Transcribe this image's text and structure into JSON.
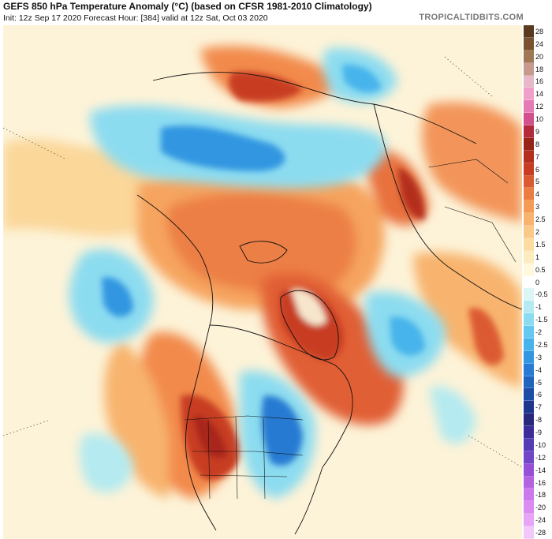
{
  "header": {
    "title": "GEFS 850 hPa Temperature Anomaly (°C) (based on CFSR 1981-2010 Climatology)",
    "subtitle": "Init: 12z Sep 17 2020   Forecast Hour: [384]   valid at 12z Sat, Oct 03 2020",
    "brand": "TROPICALTIDBITS.COM"
  },
  "map": {
    "projection": "north-polar-stereographic",
    "field": "850 hPa temperature anomaly",
    "units": "°C"
  },
  "colorbar": {
    "labels": [
      "28",
      "24",
      "20",
      "18",
      "16",
      "14",
      "12",
      "10",
      "9",
      "8",
      "7",
      "6",
      "5",
      "4",
      "3",
      "2.5",
      "2",
      "1.5",
      "1",
      "0.5",
      "0",
      "-0.5",
      "-1",
      "-1.5",
      "-2",
      "-2.5",
      "-3",
      "-4",
      "-5",
      "-6",
      "-7",
      "-8",
      "-9",
      "-10",
      "-12",
      "-14",
      "-16",
      "-18",
      "-20",
      "-24",
      "-28"
    ],
    "colors": [
      "#5a3a1e",
      "#7a5230",
      "#a07856",
      "#c79a8e",
      "#e6b8c8",
      "#f0a0c8",
      "#e67ab4",
      "#d2508c",
      "#b4283c",
      "#962318",
      "#b42d1e",
      "#c83c23",
      "#dc5a32",
      "#eb7d41",
      "#f59b55",
      "#f8b46e",
      "#fac887",
      "#fcdca0",
      "#fdecbe",
      "#fff8dc",
      "#ffffff",
      "#dcf5f5",
      "#b4eaf0",
      "#8cdcf0",
      "#64c8f0",
      "#46b4eb",
      "#3296e1",
      "#287ad2",
      "#2064be",
      "#1e4ba5",
      "#1e378c",
      "#28287d",
      "#3c2d9b",
      "#553cb4",
      "#7346c8",
      "#9650d7",
      "#b464e1",
      "#cd78eb",
      "#dc8cf0",
      "#e6a5f5",
      "#f0c8fa"
    ]
  }
}
